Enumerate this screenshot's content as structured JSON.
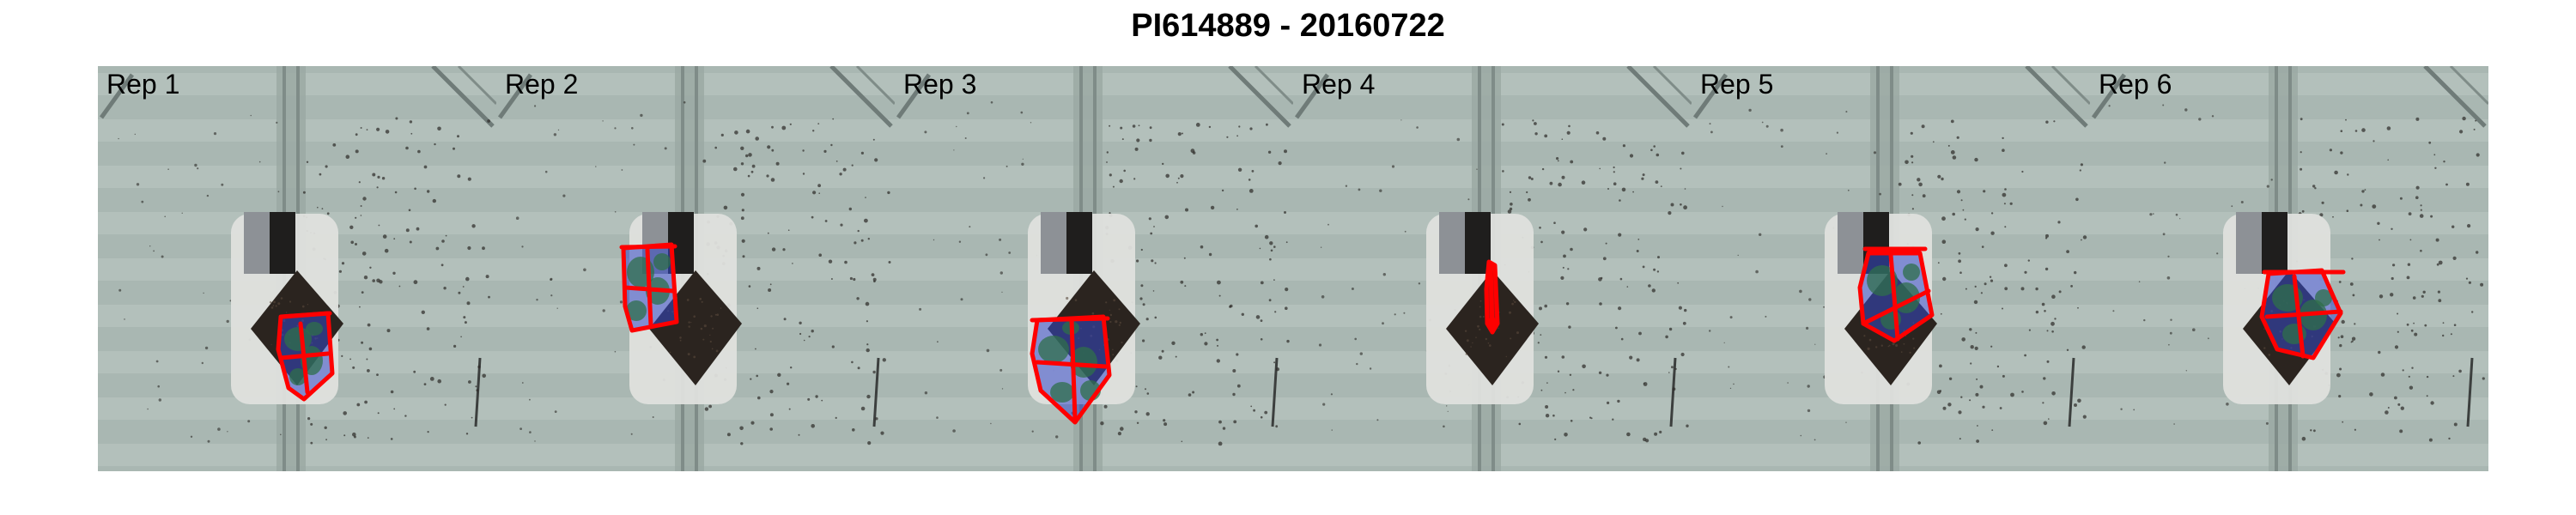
{
  "title": "PI614889 - 20160722",
  "panels": [
    {
      "label": "Rep 1"
    },
    {
      "label": "Rep 2"
    },
    {
      "label": "Rep 3"
    },
    {
      "label": "Rep 4"
    },
    {
      "label": "Rep 5"
    },
    {
      "label": "Rep 6"
    }
  ],
  "colors": {
    "background_floor": "#a9b7b2",
    "pot_white": "#dfe0dd",
    "soil": "#2b241f",
    "plant_overlay": "#2a3ad8",
    "convex_hull": "#ff0000"
  }
}
